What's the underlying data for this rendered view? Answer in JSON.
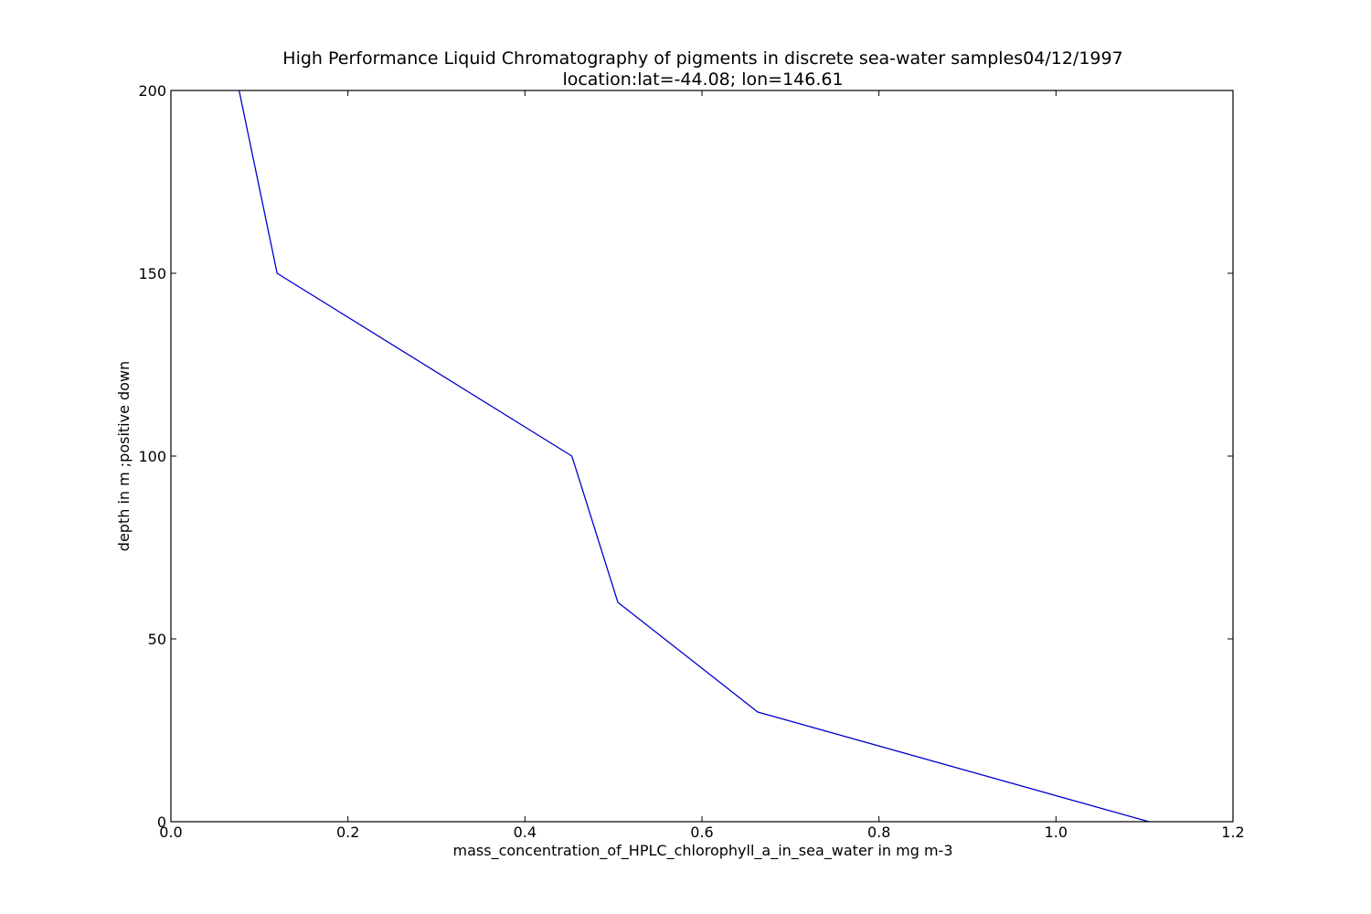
{
  "chart_data": {
    "type": "line",
    "title_line1": "High Performance Liquid Chromatography of pigments in discrete sea-water samples04/12/1997",
    "title_line2": "location:lat=-44.08; lon=146.61",
    "xlabel": "mass_concentration_of_HPLC_chlorophyll_a_in_sea_water in mg m-3",
    "ylabel": "depth in m ;positive down",
    "xlim": [
      0.0,
      1.2
    ],
    "ylim": [
      0,
      200
    ],
    "xticks": [
      0.0,
      0.2,
      0.4,
      0.6,
      0.8,
      1.0,
      1.2
    ],
    "xtick_labels": [
      "0.0",
      "0.2",
      "0.4",
      "0.6",
      "0.8",
      "1.0",
      "1.2"
    ],
    "yticks": [
      0,
      50,
      100,
      150,
      200
    ],
    "ytick_labels": [
      "0",
      "50",
      "100",
      "150",
      "200"
    ],
    "grid": false,
    "series": [
      {
        "color": "#0000cc",
        "x": [
          1.105,
          0.663,
          0.505,
          0.453,
          0.12,
          0.077
        ],
        "y": [
          0,
          30,
          60,
          100,
          150,
          200
        ]
      }
    ]
  }
}
